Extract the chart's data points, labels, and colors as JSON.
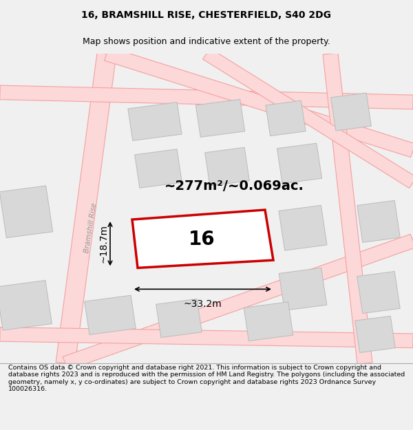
{
  "title": "16, BRAMSHILL RISE, CHESTERFIELD, S40 2DG",
  "subtitle": "Map shows position and indicative extent of the property.",
  "footer": "Contains OS data © Crown copyright and database right 2021. This information is subject to Crown copyright and database rights 2023 and is reproduced with the permission of HM Land Registry. The polygons (including the associated geometry, namely x, y co-ordinates) are subject to Crown copyright and database rights 2023 Ordnance Survey 100026316.",
  "bg_color": "#f0f0f0",
  "map_bg": "#ffffff",
  "road_color": "#f5a0a0",
  "road_fill": "#fcd8d8",
  "building_fill": "#d8d8d8",
  "building_edge": "#bbbbbb",
  "plot_color": "#cc0000",
  "plot_fill": "#ffffff",
  "area_text": "~277m²/~0.069ac.",
  "plot_number": "16",
  "street_name": "Bramshill Rise",
  "dim_width": "~33.2m",
  "dim_height": "~18.7m",
  "title_fontsize": 10,
  "subtitle_fontsize": 9,
  "footer_fontsize": 6.8,
  "area_fontsize": 14,
  "plot_num_fontsize": 20,
  "dim_fontsize": 10,
  "street_fontsize": 7.5
}
